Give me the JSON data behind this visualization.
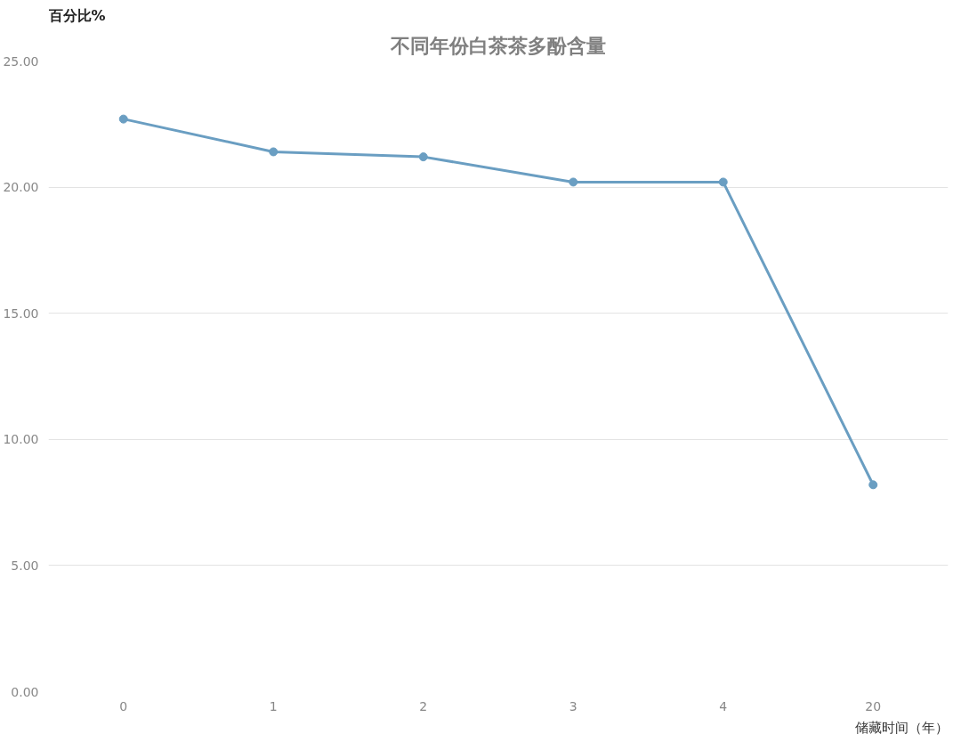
{
  "chart_data": {
    "type": "line",
    "title": "不同年份白茶茶多酚含量",
    "ylabel": "百分比%",
    "xlabel": "储藏时间（年）",
    "categories": [
      "0",
      "1",
      "2",
      "3",
      "4",
      "20"
    ],
    "series": [
      {
        "color": "#6a9ec2",
        "values": [
          22.7,
          21.4,
          21.2,
          20.2,
          20.2,
          8.2
        ]
      }
    ],
    "ylim": [
      0,
      25
    ],
    "yticks": [
      {
        "value": 0,
        "label": "0.00"
      },
      {
        "value": 5,
        "label": "5.00"
      },
      {
        "value": 10,
        "label": "10.00"
      },
      {
        "value": 15,
        "label": "15.00"
      },
      {
        "value": 20,
        "label": "20.00"
      },
      {
        "value": 25,
        "label": "25.00"
      }
    ],
    "grid": "y",
    "marker": "circle",
    "line_style": "solid"
  }
}
